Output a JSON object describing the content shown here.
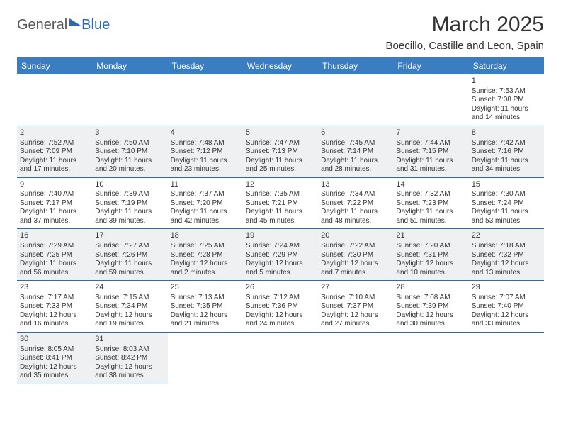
{
  "logo": {
    "part1": "General",
    "part2": "Blue"
  },
  "title": "March 2025",
  "location": "Boecillo, Castille and Leon, Spain",
  "colors": {
    "header_bg": "#3a7ec1",
    "border": "#2a6bb0",
    "shaded": "#eef0f2",
    "text": "#333333"
  },
  "day_headers": [
    "Sunday",
    "Monday",
    "Tuesday",
    "Wednesday",
    "Thursday",
    "Friday",
    "Saturday"
  ],
  "weeks": [
    [
      null,
      null,
      null,
      null,
      null,
      null,
      {
        "n": "1",
        "sr": "Sunrise: 7:53 AM",
        "ss": "Sunset: 7:08 PM",
        "dl1": "Daylight: 11 hours",
        "dl2": "and 14 minutes."
      }
    ],
    [
      {
        "n": "2",
        "sr": "Sunrise: 7:52 AM",
        "ss": "Sunset: 7:09 PM",
        "dl1": "Daylight: 11 hours",
        "dl2": "and 17 minutes."
      },
      {
        "n": "3",
        "sr": "Sunrise: 7:50 AM",
        "ss": "Sunset: 7:10 PM",
        "dl1": "Daylight: 11 hours",
        "dl2": "and 20 minutes."
      },
      {
        "n": "4",
        "sr": "Sunrise: 7:48 AM",
        "ss": "Sunset: 7:12 PM",
        "dl1": "Daylight: 11 hours",
        "dl2": "and 23 minutes."
      },
      {
        "n": "5",
        "sr": "Sunrise: 7:47 AM",
        "ss": "Sunset: 7:13 PM",
        "dl1": "Daylight: 11 hours",
        "dl2": "and 25 minutes."
      },
      {
        "n": "6",
        "sr": "Sunrise: 7:45 AM",
        "ss": "Sunset: 7:14 PM",
        "dl1": "Daylight: 11 hours",
        "dl2": "and 28 minutes."
      },
      {
        "n": "7",
        "sr": "Sunrise: 7:44 AM",
        "ss": "Sunset: 7:15 PM",
        "dl1": "Daylight: 11 hours",
        "dl2": "and 31 minutes."
      },
      {
        "n": "8",
        "sr": "Sunrise: 7:42 AM",
        "ss": "Sunset: 7:16 PM",
        "dl1": "Daylight: 11 hours",
        "dl2": "and 34 minutes."
      }
    ],
    [
      {
        "n": "9",
        "sr": "Sunrise: 7:40 AM",
        "ss": "Sunset: 7:17 PM",
        "dl1": "Daylight: 11 hours",
        "dl2": "and 37 minutes."
      },
      {
        "n": "10",
        "sr": "Sunrise: 7:39 AM",
        "ss": "Sunset: 7:19 PM",
        "dl1": "Daylight: 11 hours",
        "dl2": "and 39 minutes."
      },
      {
        "n": "11",
        "sr": "Sunrise: 7:37 AM",
        "ss": "Sunset: 7:20 PM",
        "dl1": "Daylight: 11 hours",
        "dl2": "and 42 minutes."
      },
      {
        "n": "12",
        "sr": "Sunrise: 7:35 AM",
        "ss": "Sunset: 7:21 PM",
        "dl1": "Daylight: 11 hours",
        "dl2": "and 45 minutes."
      },
      {
        "n": "13",
        "sr": "Sunrise: 7:34 AM",
        "ss": "Sunset: 7:22 PM",
        "dl1": "Daylight: 11 hours",
        "dl2": "and 48 minutes."
      },
      {
        "n": "14",
        "sr": "Sunrise: 7:32 AM",
        "ss": "Sunset: 7:23 PM",
        "dl1": "Daylight: 11 hours",
        "dl2": "and 51 minutes."
      },
      {
        "n": "15",
        "sr": "Sunrise: 7:30 AM",
        "ss": "Sunset: 7:24 PM",
        "dl1": "Daylight: 11 hours",
        "dl2": "and 53 minutes."
      }
    ],
    [
      {
        "n": "16",
        "sr": "Sunrise: 7:29 AM",
        "ss": "Sunset: 7:25 PM",
        "dl1": "Daylight: 11 hours",
        "dl2": "and 56 minutes."
      },
      {
        "n": "17",
        "sr": "Sunrise: 7:27 AM",
        "ss": "Sunset: 7:26 PM",
        "dl1": "Daylight: 11 hours",
        "dl2": "and 59 minutes."
      },
      {
        "n": "18",
        "sr": "Sunrise: 7:25 AM",
        "ss": "Sunset: 7:28 PM",
        "dl1": "Daylight: 12 hours",
        "dl2": "and 2 minutes."
      },
      {
        "n": "19",
        "sr": "Sunrise: 7:24 AM",
        "ss": "Sunset: 7:29 PM",
        "dl1": "Daylight: 12 hours",
        "dl2": "and 5 minutes."
      },
      {
        "n": "20",
        "sr": "Sunrise: 7:22 AM",
        "ss": "Sunset: 7:30 PM",
        "dl1": "Daylight: 12 hours",
        "dl2": "and 7 minutes."
      },
      {
        "n": "21",
        "sr": "Sunrise: 7:20 AM",
        "ss": "Sunset: 7:31 PM",
        "dl1": "Daylight: 12 hours",
        "dl2": "and 10 minutes."
      },
      {
        "n": "22",
        "sr": "Sunrise: 7:18 AM",
        "ss": "Sunset: 7:32 PM",
        "dl1": "Daylight: 12 hours",
        "dl2": "and 13 minutes."
      }
    ],
    [
      {
        "n": "23",
        "sr": "Sunrise: 7:17 AM",
        "ss": "Sunset: 7:33 PM",
        "dl1": "Daylight: 12 hours",
        "dl2": "and 16 minutes."
      },
      {
        "n": "24",
        "sr": "Sunrise: 7:15 AM",
        "ss": "Sunset: 7:34 PM",
        "dl1": "Daylight: 12 hours",
        "dl2": "and 19 minutes."
      },
      {
        "n": "25",
        "sr": "Sunrise: 7:13 AM",
        "ss": "Sunset: 7:35 PM",
        "dl1": "Daylight: 12 hours",
        "dl2": "and 21 minutes."
      },
      {
        "n": "26",
        "sr": "Sunrise: 7:12 AM",
        "ss": "Sunset: 7:36 PM",
        "dl1": "Daylight: 12 hours",
        "dl2": "and 24 minutes."
      },
      {
        "n": "27",
        "sr": "Sunrise: 7:10 AM",
        "ss": "Sunset: 7:37 PM",
        "dl1": "Daylight: 12 hours",
        "dl2": "and 27 minutes."
      },
      {
        "n": "28",
        "sr": "Sunrise: 7:08 AM",
        "ss": "Sunset: 7:39 PM",
        "dl1": "Daylight: 12 hours",
        "dl2": "and 30 minutes."
      },
      {
        "n": "29",
        "sr": "Sunrise: 7:07 AM",
        "ss": "Sunset: 7:40 PM",
        "dl1": "Daylight: 12 hours",
        "dl2": "and 33 minutes."
      }
    ],
    [
      {
        "n": "30",
        "sr": "Sunrise: 8:05 AM",
        "ss": "Sunset: 8:41 PM",
        "dl1": "Daylight: 12 hours",
        "dl2": "and 35 minutes."
      },
      {
        "n": "31",
        "sr": "Sunrise: 8:03 AM",
        "ss": "Sunset: 8:42 PM",
        "dl1": "Daylight: 12 hours",
        "dl2": "and 38 minutes."
      },
      null,
      null,
      null,
      null,
      null
    ]
  ]
}
